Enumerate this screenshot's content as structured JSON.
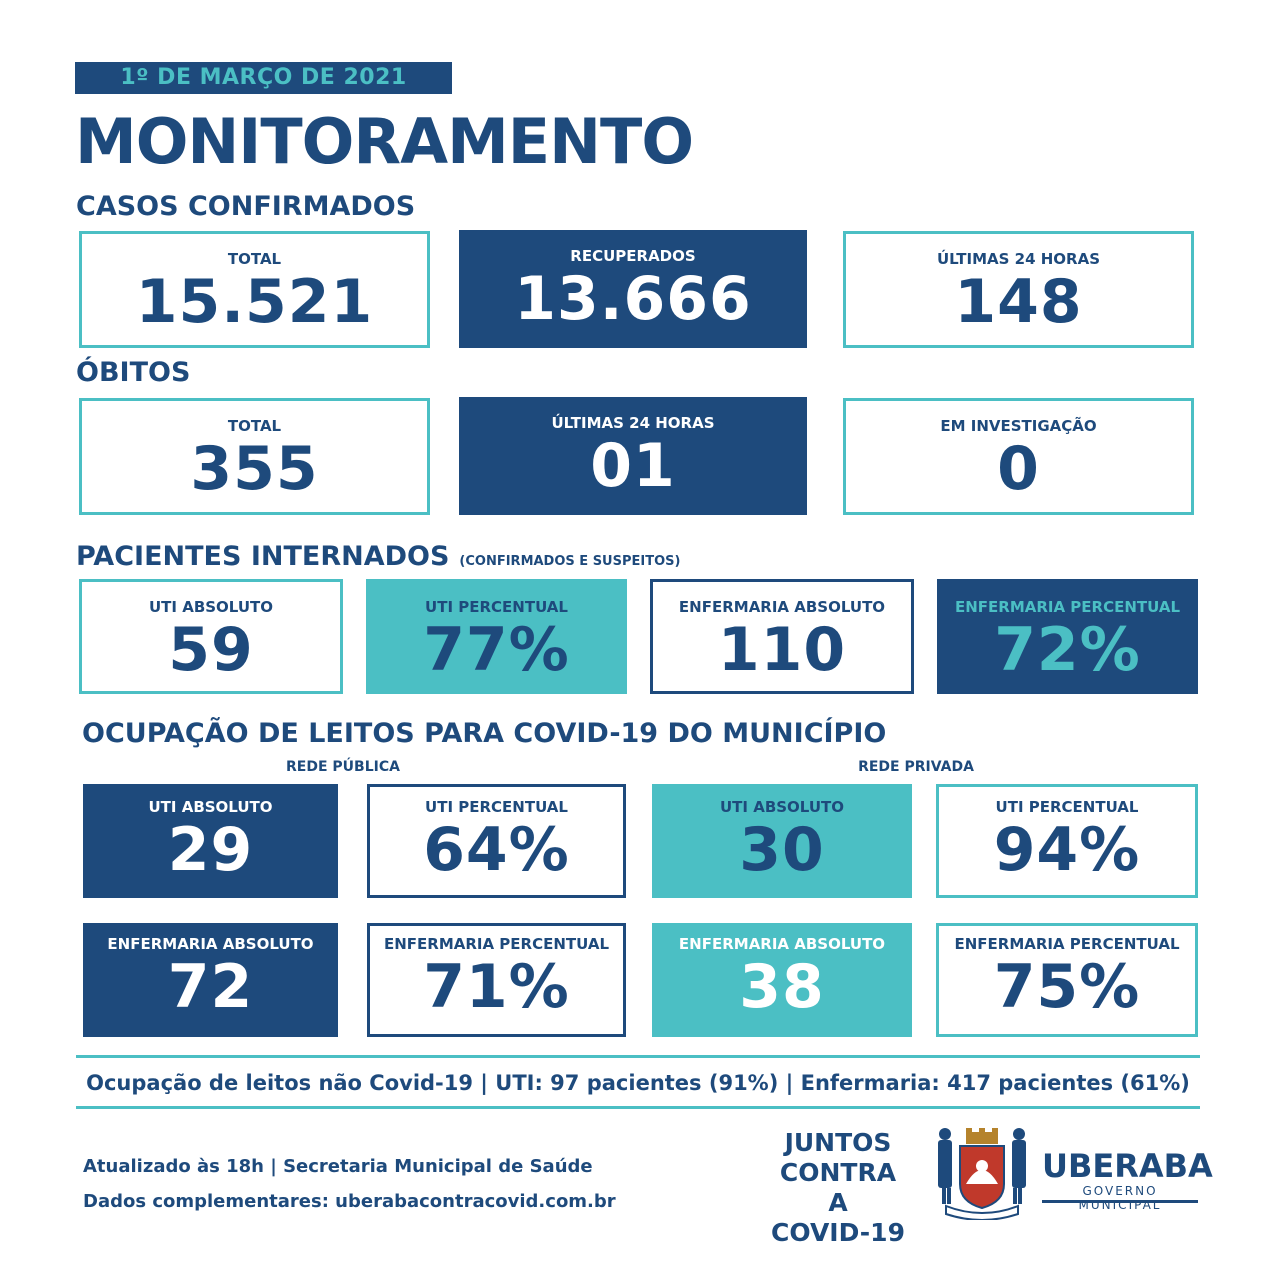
{
  "date": "1º DE MARÇO DE 2021",
  "title": "MONITORAMENTO",
  "confirmed": {
    "heading": "CASOS CONFIRMADOS",
    "cards": [
      {
        "label": "TOTAL",
        "value": "15.521"
      },
      {
        "label": "RECUPERADOS",
        "value": "13.666"
      },
      {
        "label": "ÚLTIMAS 24 HORAS",
        "value": "148"
      }
    ]
  },
  "deaths": {
    "heading": "ÓBITOS",
    "cards": [
      {
        "label": "TOTAL",
        "value": "355"
      },
      {
        "label": "ÚLTIMAS 24 HORAS",
        "value": "01"
      },
      {
        "label": "EM INVESTIGAÇÃO",
        "value": "0"
      }
    ]
  },
  "inpatients": {
    "heading": "PACIENTES INTERNADOS",
    "note": "(CONFIRMADOS E SUSPEITOS)",
    "cards": [
      {
        "label": "UTI ABSOLUTO",
        "value": "59"
      },
      {
        "label": "UTI PERCENTUAL",
        "value": "77%"
      },
      {
        "label": "ENFERMARIA ABSOLUTO",
        "value": "110"
      },
      {
        "label": "ENFERMARIA PERCENTUAL",
        "value": "72%"
      }
    ]
  },
  "occupancy": {
    "heading": "OCUPAÇÃO DE LEITOS PARA COVID-19 DO MUNICÍPIO",
    "public_label": "REDE PÚBLICA",
    "private_label": "REDE PRIVADA",
    "cards": [
      {
        "label": "UTI ABSOLUTO",
        "value": "29"
      },
      {
        "label": "UTI PERCENTUAL",
        "value": "64%"
      },
      {
        "label": "UTI ABSOLUTO",
        "value": "30"
      },
      {
        "label": "UTI PERCENTUAL",
        "value": "94%"
      },
      {
        "label": "ENFERMARIA ABSOLUTO",
        "value": "72"
      },
      {
        "label": "ENFERMARIA PERCENTUAL",
        "value": "71%"
      },
      {
        "label": "ENFERMARIA ABSOLUTO",
        "value": "38"
      },
      {
        "label": "ENFERMARIA PERCENTUAL",
        "value": "75%"
      }
    ]
  },
  "non_covid": "Ocupação de leitos não Covid-19 | UTI: 97 pacientes (91%) | Enfermaria: 417 pacientes (61%)",
  "footer": {
    "updated": "Atualizado às 18h | Secretaria Municipal de Saúde",
    "more": "Dados complementares: uberabacontracovid.com.br"
  },
  "campaign": [
    "JUNTOS",
    "CONTRA A",
    "COVID-19"
  ],
  "brand": {
    "name": "UBERABA",
    "sub": "GOVERNO MUNICIPAL"
  },
  "colors": {
    "navy": "#1e4a7c",
    "teal": "#4bbfc4"
  },
  "icons": {
    "crest": "coat-of-arms-icon"
  }
}
